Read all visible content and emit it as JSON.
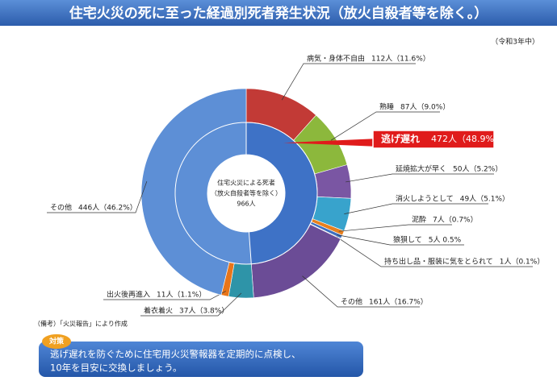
{
  "chart_data": {
    "type": "nested-donut",
    "title": "住宅火災の死に至った経過別死者発生状況（放火自殺者等を除く。）",
    "subtitle": "（令和3年中）",
    "center_lines": [
      "住宅火災による死者",
      "（放火自殺者等を除く）"
    ],
    "total": 966,
    "total_label": "966人",
    "outer": {
      "categories": [
        "病気・身体不自由",
        "熟睡",
        "延焼拡大が早く",
        "消火しようとして",
        "泥酔",
        "狼狽して",
        "持ち出し品・服装に気をとられて",
        "その他",
        "着衣着火",
        "出火後再進入",
        "その他"
      ],
      "values": [
        112,
        87,
        50,
        49,
        7,
        5,
        1,
        161,
        37,
        11,
        446
      ],
      "value_labels": [
        "112人（11.6%）",
        "87人（9.0%）",
        "50人（5.2%）",
        "49人（5.1%）",
        "7人（0.7%）",
        "5人 0.5%",
        "1人（0.1%）",
        "161人（16.7%）",
        "37人（3.8%）",
        "11人（1.1%）",
        "446人（46.2%）"
      ],
      "colors": [
        "#c23a36",
        "#8cb83c",
        "#7a56a3",
        "#38a3cc",
        "#e8801e",
        "#3d6fc0",
        "#999999",
        "#6b4c96",
        "#2e94a8",
        "#e8751a",
        "#5d8fd6"
      ]
    },
    "inner": {
      "categories": [
        "逃げ遅れ"
      ],
      "values": [
        472
      ],
      "value_labels": [
        "472人（48.9%）"
      ],
      "colors": [
        "#3e72c6"
      ]
    },
    "note": "（備考）「火災報告」により作成",
    "measure_badge": "対策",
    "measure_lines": [
      "逃げ遅れを防ぐために住宅用火災警報器を定期的に点検し、",
      "10年を目安に交換しましょう。"
    ]
  }
}
